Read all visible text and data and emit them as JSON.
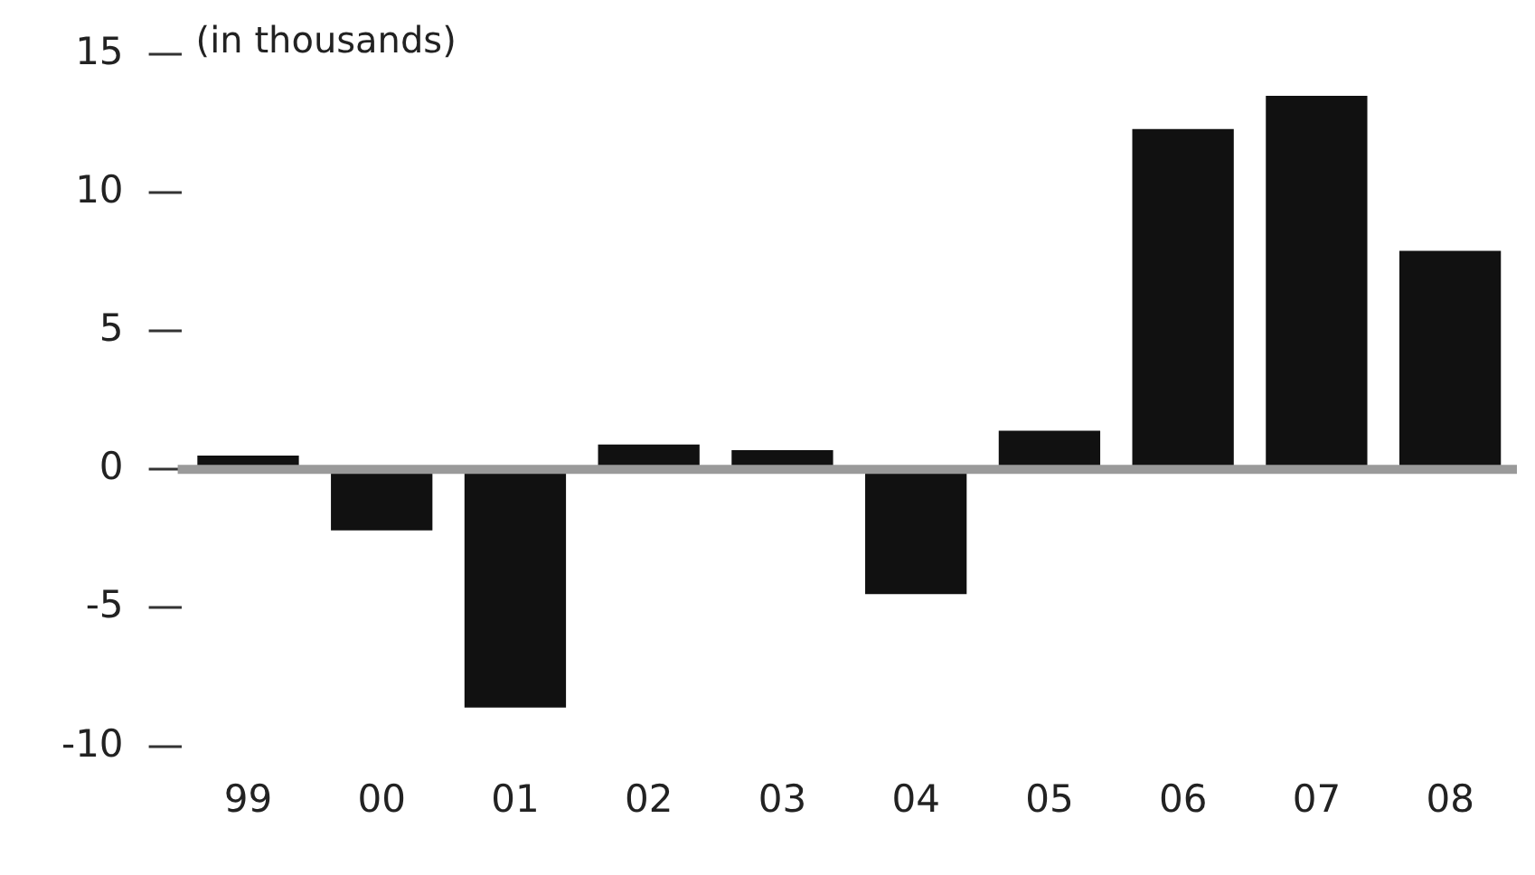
{
  "chart_data": {
    "type": "bar",
    "ylabel": "(in thousands)",
    "categories": [
      "99",
      "00",
      "01",
      "02",
      "03",
      "04",
      "05",
      "06",
      "07",
      "08"
    ],
    "values": [
      0.5,
      -2.2,
      -8.6,
      0.9,
      0.7,
      -4.5,
      1.4,
      12.3,
      13.5,
      7.9
    ],
    "color": "#111111",
    "ylim": [
      -10,
      15
    ],
    "yticks": [
      -10,
      -5,
      0,
      5,
      10,
      15
    ],
    "grid": false,
    "legend": false,
    "ref_lines": [
      {
        "axis": "y",
        "value": 0,
        "color": "#9a9a9a"
      }
    ]
  }
}
